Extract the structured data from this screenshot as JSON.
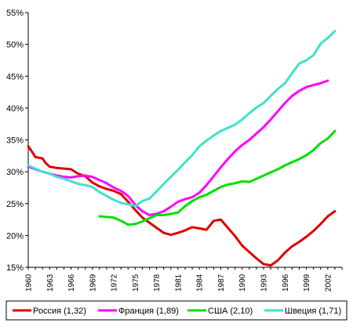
{
  "chart_data": {
    "type": "line",
    "title": "",
    "xlabel": "",
    "ylabel": "",
    "xlim": [
      1960,
      2004
    ],
    "ylim": [
      15,
      55
    ],
    "y_ticks": [
      "15%",
      "20%",
      "25%",
      "30%",
      "35%",
      "40%",
      "45%",
      "50%",
      "55%"
    ],
    "x_ticks": [
      "1960",
      "1963",
      "1966",
      "1969",
      "1972",
      "1975",
      "1978",
      "1981",
      "1984",
      "1987",
      "1990",
      "1993",
      "1996",
      "1999",
      "2002"
    ],
    "grid": false,
    "legend_position": "bottom",
    "series": [
      {
        "name": "Россия (1,32)",
        "color": "#e00000",
        "x": [
          1960,
          1960.5,
          1961,
          1962,
          1962.5,
          1963,
          1964,
          1965,
          1966,
          1967,
          1968,
          1969,
          1970,
          1971,
          1972,
          1973,
          1974,
          1975,
          1976,
          1977,
          1978,
          1979,
          1980,
          1981,
          1982,
          1983,
          1984,
          1985,
          1986,
          1987,
          1988,
          1989,
          1990,
          1991,
          1992,
          1993,
          1994,
          1995,
          1996,
          1997,
          1998,
          1999,
          2000,
          2001,
          2002,
          2003
        ],
        "y": [
          34,
          33.2,
          32.3,
          32.1,
          31.3,
          30.8,
          30.6,
          30.5,
          30.4,
          29.7,
          29.3,
          28.3,
          27.7,
          27.3,
          27,
          26.5,
          25.3,
          24,
          22.8,
          22,
          21.2,
          20.4,
          20.1,
          20.4,
          20.8,
          21.3,
          21.1,
          20.9,
          22.3,
          22.5,
          21.2,
          19.9,
          18.4,
          17.4,
          16.4,
          15.5,
          15.3,
          16.1,
          17.3,
          18.3,
          19,
          19.8,
          20.7,
          21.8,
          23,
          23.8
        ]
      },
      {
        "name": "Франция (1,89)",
        "color": "#ff00ff",
        "x": [
          1960,
          1961,
          1962,
          1963,
          1964,
          1965,
          1966,
          1967,
          1968,
          1969,
          1970,
          1971,
          1972,
          1973,
          1974,
          1975,
          1976,
          1977,
          1978,
          1979,
          1980,
          1981,
          1982,
          1983,
          1984,
          1985,
          1986,
          1987,
          1988,
          1989,
          1990,
          1991,
          1992,
          1993,
          1994,
          1995,
          1996,
          1997,
          1998,
          1999,
          2000,
          2001,
          2002
        ],
        "y": [
          30.8,
          30.4,
          30,
          29.7,
          29.4,
          29.2,
          29.1,
          29.3,
          29.4,
          29.2,
          28.7,
          28.2,
          27.5,
          27,
          26.2,
          24.8,
          23.8,
          23.2,
          23.4,
          23.8,
          24.5,
          25.3,
          25.7,
          26,
          26.7,
          27.9,
          29.3,
          30.7,
          32,
          33.2,
          34.2,
          35,
          36,
          37,
          38.2,
          39.5,
          40.8,
          41.9,
          42.7,
          43.3,
          43.6,
          43.9,
          44.3
        ]
      },
      {
        "name": "США (2,10)",
        "color": "#00e000",
        "x": [
          1970,
          1971,
          1972,
          1973,
          1974,
          1975,
          1976,
          1977,
          1978,
          1979,
          1980,
          1981,
          1982,
          1983,
          1984,
          1985,
          1986,
          1987,
          1988,
          1989,
          1990,
          1991,
          1992,
          1993,
          1994,
          1995,
          1996,
          1997,
          1998,
          1999,
          2000,
          2001,
          2002,
          2003
        ],
        "y": [
          23,
          22.9,
          22.8,
          22.3,
          21.7,
          21.8,
          22.2,
          22.7,
          23.2,
          23.2,
          23.4,
          23.6,
          24.6,
          25.4,
          26,
          26.4,
          27,
          27.6,
          28,
          28.2,
          28.5,
          28.4,
          28.9,
          29.4,
          29.9,
          30.4,
          31,
          31.5,
          32,
          32.6,
          33.4,
          34.5,
          35.2,
          36.4
        ]
      },
      {
        "name": "Швеция (1,71)",
        "color": "#40e0d0",
        "x": [
          1960,
          1961,
          1962,
          1963,
          1964,
          1965,
          1966,
          1967,
          1968,
          1969,
          1970,
          1971,
          1972,
          1973,
          1974,
          1975,
          1976,
          1977,
          1978,
          1979,
          1980,
          1981,
          1982,
          1983,
          1984,
          1985,
          1986,
          1987,
          1988,
          1989,
          1990,
          1991,
          1992,
          1993,
          1994,
          1995,
          1996,
          1997,
          1998,
          1999,
          2000,
          2001,
          2002,
          2003
        ],
        "y": [
          31,
          30.5,
          30,
          29.7,
          29.2,
          28.9,
          28.5,
          28.1,
          27.9,
          27.6,
          26.8,
          26.2,
          25.6,
          25.1,
          24.9,
          24.6,
          25.4,
          25.8,
          26.9,
          28.1,
          29.2,
          30.3,
          31.5,
          32.6,
          34,
          34.9,
          35.7,
          36.4,
          36.9,
          37.4,
          38.2,
          39.2,
          40.1,
          40.8,
          41.9,
          43,
          43.9,
          45.5,
          47,
          47.5,
          48.3,
          50.1,
          51,
          52.1
        ]
      }
    ]
  }
}
